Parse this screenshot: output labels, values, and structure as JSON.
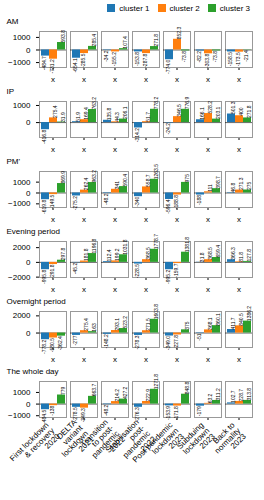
{
  "chart_data": [
    {
      "type": "bar",
      "y_label": "AM",
      "categories": [
        "x",
        "x",
        "x",
        "x",
        "x",
        "x",
        "x"
      ],
      "series": [
        {
          "name": "cluster 1",
          "color": "#1f77b4",
          "values": [
            -484.71,
            -654.1,
            -34.18,
            -153.85,
            -773.98,
            -82.2,
            -158.46
          ],
          "value_labels": [
            "-484.7",
            "-654.1",
            "-34.2",
            "-153.8",
            "-774.0",
            "-82.2",
            "-158.5"
          ]
        },
        {
          "name": "cluster 2",
          "color": "#ff7f0e",
          "values": [
            -731.2,
            -285.5,
            -155.2,
            -287.8,
            852.31,
            -303.8,
            -173.5
          ],
          "value_labels": [
            "-731.2",
            "-285.5",
            "-155.2",
            "-287.8",
            "852.3",
            "-303.8",
            "-173.5"
          ]
        },
        {
          "name": "cluster 3",
          "color": "#2ca02c",
          "values": [
            593.8,
            285.4,
            107.4,
            271.81,
            -73.8,
            -73.8,
            -21.4
          ],
          "value_labels": [
            "593.8",
            "285.4",
            "107.4",
            "271.8",
            "-73.8",
            "-73.8",
            "-21.4"
          ]
        }
      ],
      "ylim": [
        -1391.9702,
        1470.3002
      ],
      "yticks": [
        -1000,
        0,
        1000
      ],
      "data_labels": true,
      "grid": false,
      "legend": "upper right"
    },
    {
      "type": "bar",
      "y_label": "IP",
      "categories": [
        "x",
        "x",
        "x",
        "x",
        "x",
        "x",
        "x"
      ],
      "series": [
        {
          "color": "#1f77b4",
          "values": [
            -416.81,
            51.9,
            135.8,
            -314.19,
            -24.19,
            166.1,
            501.3
          ],
          "value_labels": [
            "-416.8",
            "51.9",
            "135.8",
            "-314.2",
            "-24.2",
            "166.1",
            "501.3"
          ]
        },
        {
          "color": "#ff7f0e",
          "values": [
            275.44,
            169.38,
            44.28,
            51.7,
            346.48,
            528.18,
            400.0
          ],
          "value_labels": [
            "275.4",
            "169.4",
            "44.3",
            "51.7",
            "346.5",
            "528.2",
            "400"
          ]
        },
        {
          "color": "#2ca02c",
          "values": [
            31.9,
            763.21,
            206.1,
            778.17,
            776.87,
            203.1,
            271.81
          ],
          "value_labels": [
            "31.9",
            "763.2",
            "206.1",
            "778.2",
            "776.9",
            "203.1",
            "271.8"
          ]
        }
      ],
      "ylim": [
        -870.9024,
        1232.2624
      ],
      "yticks": [
        0,
        1000
      ],
      "data_labels": true,
      "grid": false
    },
    {
      "type": "bar",
      "y_label": "PM'",
      "categories": [
        "x",
        "x",
        "x",
        "x",
        "x",
        "x",
        "x"
      ],
      "series": [
        {
          "color": "#1f77b4",
          "values": [
            -619.81,
            -275.21,
            -48.18,
            -340.0,
            -596.44,
            -188.0,
            46.81
          ],
          "value_labels": [
            "-619.8",
            "-275.2",
            "-48.2",
            "-340",
            "-596.4",
            "-188",
            "46.8"
          ]
        },
        {
          "color": "#ff7f0e",
          "values": [
            -149.51,
            262.44,
            341.0,
            558.73,
            -188.8,
            111.0,
            271.28
          ],
          "value_labels": [
            "-149.5",
            "262.4",
            "341",
            "558.7",
            "-188.8",
            "111",
            "271.3"
          ]
        },
        {
          "color": "#2ca02c",
          "values": [
            869.9,
            963.21,
            590.4,
            1263.5,
            975.0,
            398.71,
            275.0
          ],
          "value_labels": [
            "869.9",
            "963.2",
            "590.4",
            "1263.5",
            "975",
            "398.7",
            "275"
          ]
        }
      ],
      "ylim": [
        -1335.4678,
        1979.1578
      ],
      "yticks": [
        -1000,
        0,
        1000
      ],
      "data_labels": true,
      "grid": false
    },
    {
      "type": "bar",
      "y_label": "Evening period",
      "categories": [
        "x",
        "x",
        "x",
        "x",
        "x",
        "x",
        "x"
      ],
      "series": [
        {
          "color": "#1f77b4",
          "values": [
            -995.81,
            -45.21,
            112.4,
            -228.46,
            -995.21,
            31.81,
            366.3
          ],
          "value_labels": [
            "-995.8",
            "-45.2",
            "112.4",
            "-228.5",
            "-995.2",
            "31.8",
            "366.3"
          ]
        },
        {
          "color": "#ff7f0e",
          "values": [
            -291.81,
            181.85,
            199.21,
            368.48,
            -159.7,
            368.5,
            81.8
          ],
          "value_labels": [
            "-291.8",
            "181.8",
            "199.2",
            "368.5",
            "-159.7",
            "368.5",
            "81.8"
          ]
        },
        {
          "color": "#2ca02c",
          "values": [
            297.81,
            1196.81,
            1031.81,
            1778.7,
            1381.81,
            659.4,
            127.84
          ],
          "value_labels": [
            "297.8",
            "1196.8",
            "1031.8",
            "1778.7",
            "1381.8",
            "659.4",
            "127.8"
          ]
        }
      ],
      "ylim": [
        -2050.1238,
        2833.0138
      ],
      "yticks": [
        -2000,
        0,
        2000
      ],
      "data_labels": true,
      "grid": false
    },
    {
      "type": "bar",
      "y_label": "Overnight period",
      "categories": [
        "x",
        "x",
        "x",
        "x",
        "x",
        "x",
        "x"
      ],
      "series": [
        {
          "color": "#1f77b4",
          "values": [
            -778.19,
            -277.0,
            -148.19,
            -278.27,
            -348.98,
            -51.0,
            411.7
          ],
          "value_labels": [
            "-778.2",
            "-277",
            "-148.2",
            "-278.3",
            "-349.0",
            "-51",
            "411.7"
          ]
        },
        {
          "color": "#ff7f0e",
          "values": [
            -580.48,
            275.44,
            293.1,
            271.46,
            -227.81,
            368.15,
            840.48
          ],
          "value_labels": [
            "-580.5",
            "275.4",
            "293.1",
            "271.5",
            "-227.8",
            "368.1",
            "840.5"
          ]
        },
        {
          "color": "#2ca02c",
          "values": [
            -362.44,
            163.0,
            523.21,
            1603.81,
            375.0,
            860.1,
            1386.21
          ],
          "value_labels": [
            "-362.4",
            "163",
            "523.2",
            "1603.8",
            "375",
            "860.1",
            "1386.2"
          ]
        }
      ],
      "ylim": [
        -1683.35,
        2508.97
      ],
      "yticks": [
        0,
        2000
      ],
      "data_labels": true,
      "grid": false
    },
    {
      "type": "bar",
      "y_label": "The whole day",
      "categories": [
        "First lockdown\n& recovery\n2020",
        "DELTA\nvariant\nlockdown\n2021",
        "Transition\nto post-\npandemic\n2022",
        "Stabilisation\npost-\npandemic\n2022",
        "Post pandemic\nlockdown\n2023",
        "Subduing\nlockdown\n2023",
        "Back to\nnormality\n2023"
      ],
      "series": [
        {
          "color": "#1f77b4",
          "values": [
            -484.51,
            -278.48,
            -48.19,
            -276.34,
            -153.88,
            -179.0,
            102.7
          ],
          "value_labels": [
            "-484.5",
            "-278.5",
            "-48.2",
            "-276.3",
            "-153.9",
            "-179",
            "102.7"
          ]
        },
        {
          "color": "#ff7f0e",
          "values": [
            -138.0,
            -349.28,
            214.19,
            222.88,
            -171.81,
            63.21,
            228.68
          ],
          "value_labels": [
            "-138",
            "-349.3",
            "214.2",
            "222.9",
            "-171.8",
            "63.2",
            "228.7"
          ]
        },
        {
          "color": "#2ca02c",
          "values": [
            779.0,
            663.7,
            427.21,
            1271.8,
            848.81,
            311.21,
            313.81
          ],
          "value_labels": [
            "779",
            "663.7",
            "427.2",
            "1271.8",
            "848.8",
            "311.2",
            "313.8"
          ]
        }
      ],
      "ylim": [
        -1151.9078,
        1939.1978
      ],
      "yticks": [
        -1000,
        0,
        1000
      ],
      "data_labels": true,
      "grid": false
    }
  ]
}
